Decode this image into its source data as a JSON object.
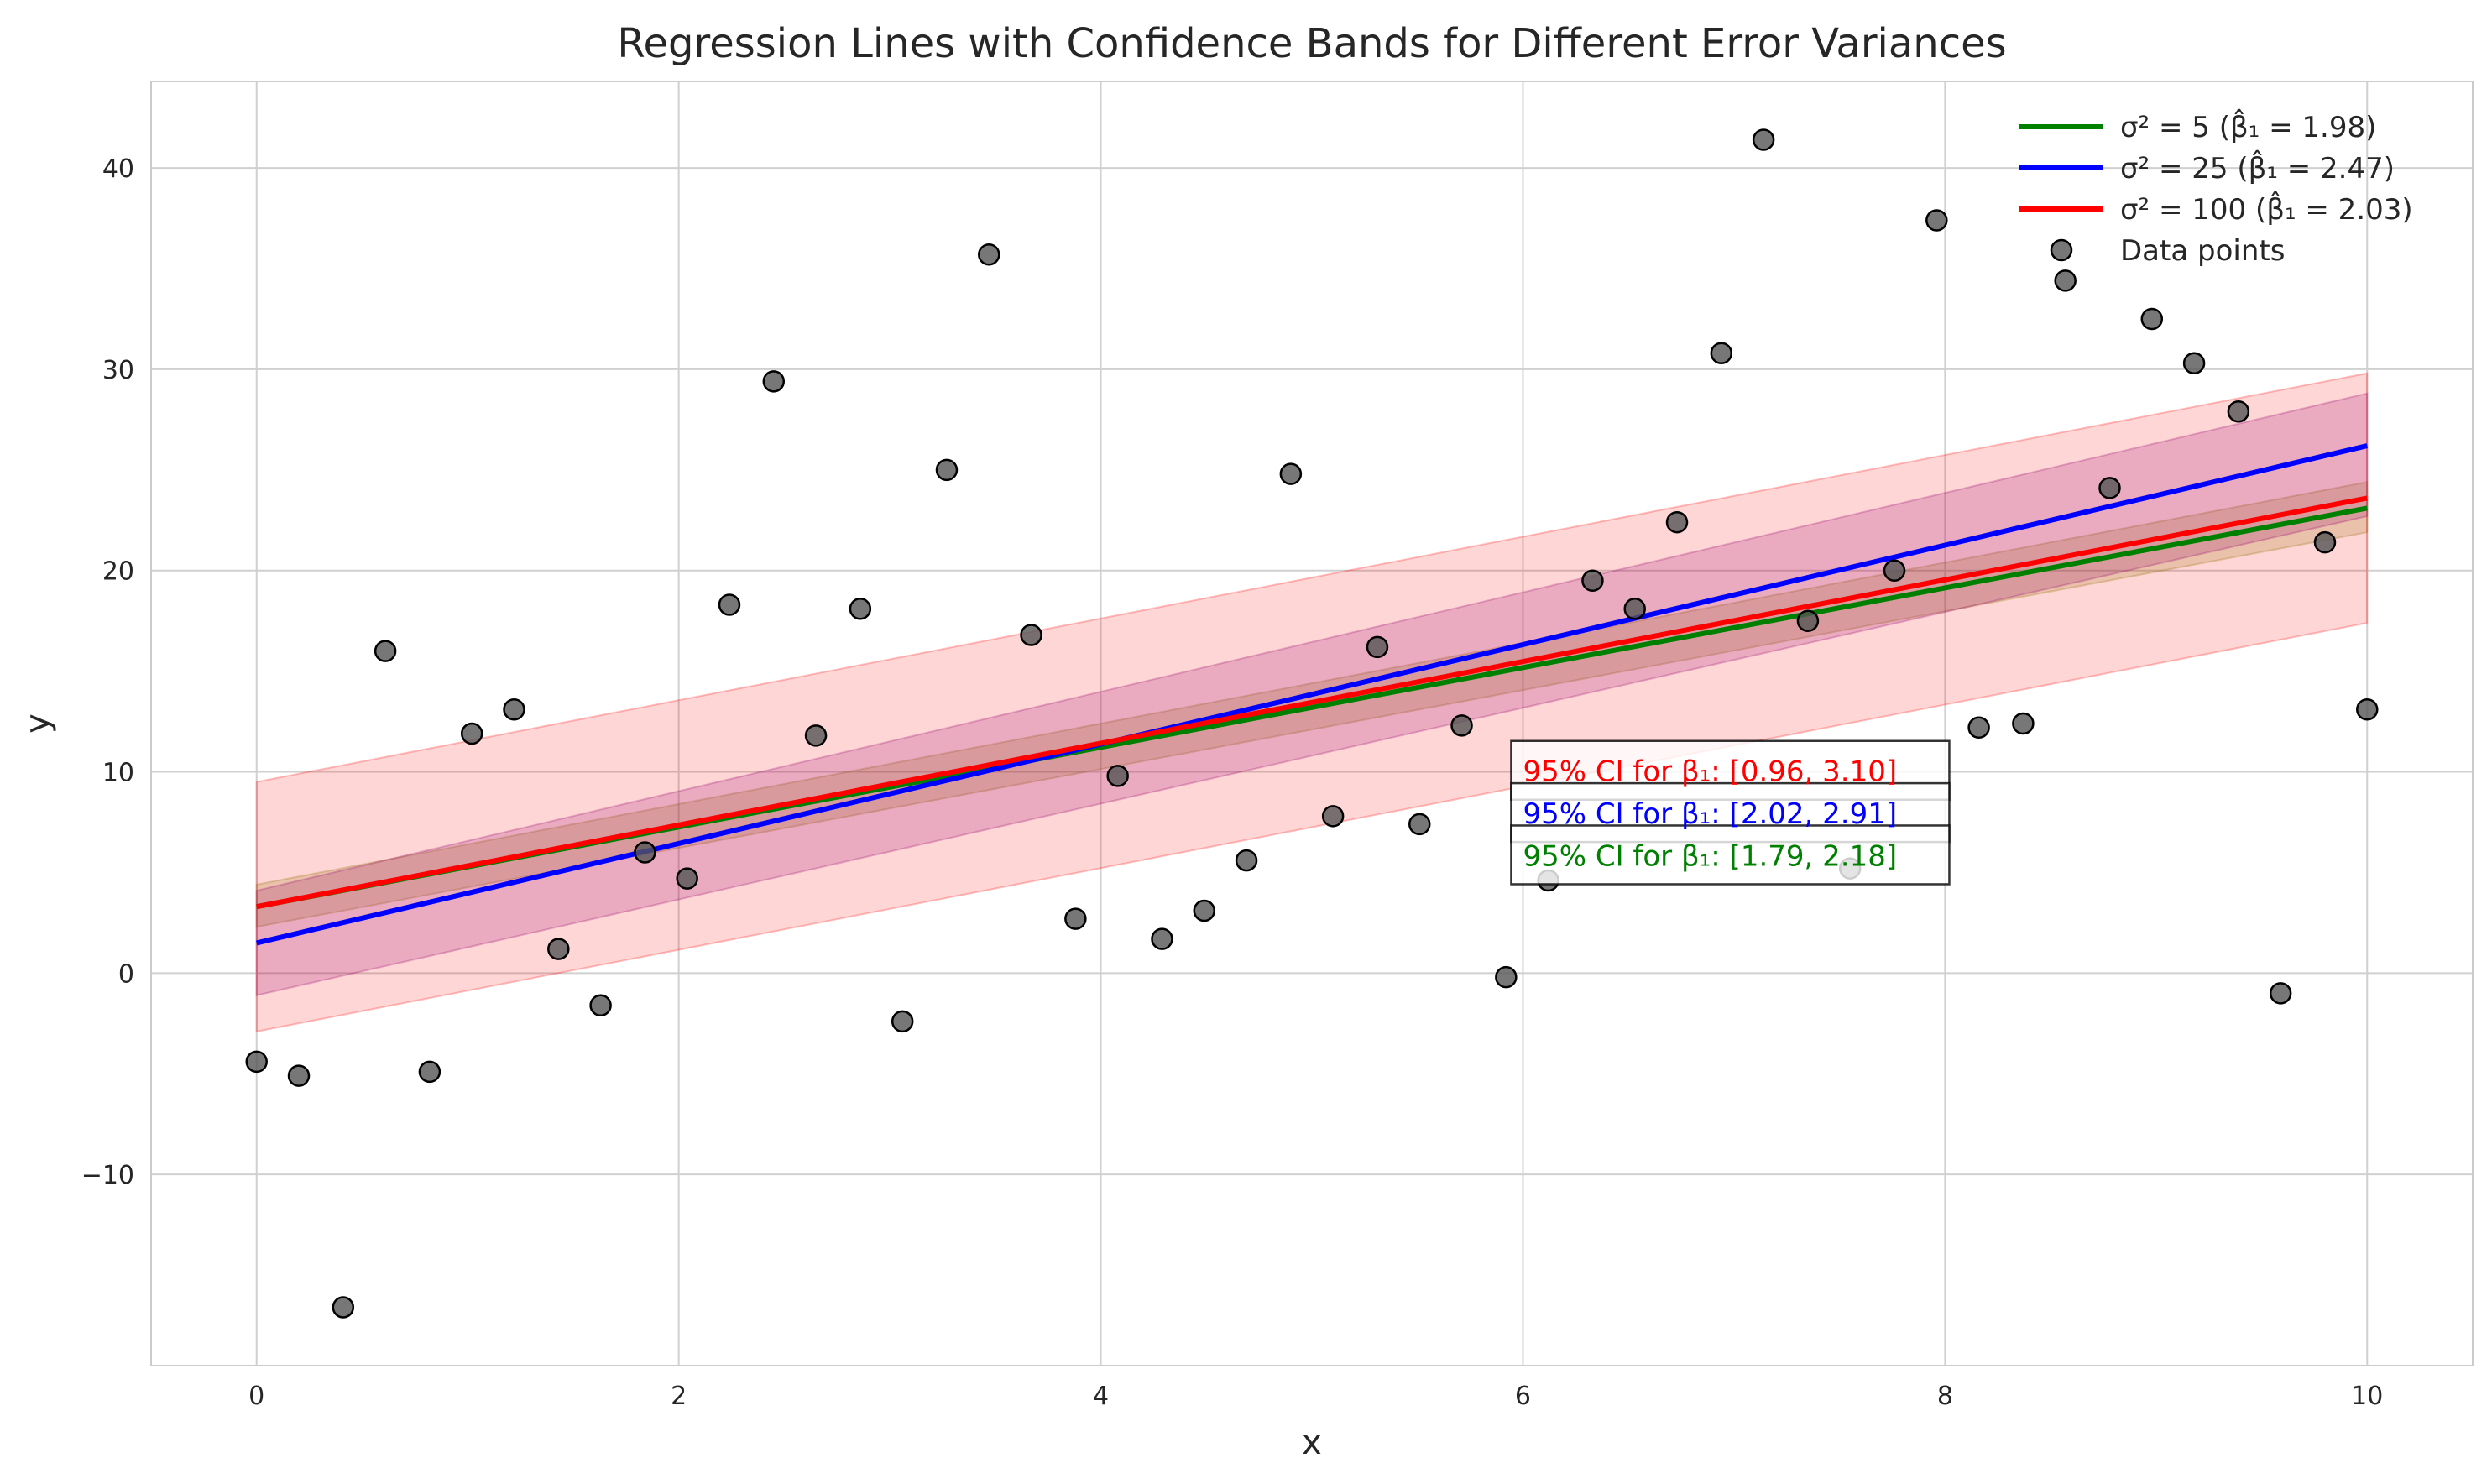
{
  "chart_data": {
    "type": "line",
    "title": "Regression Lines with Confidence Bands for Different Error Variances",
    "xlabel": "x",
    "ylabel": "y",
    "xlim": [
      -0.5,
      10.5
    ],
    "ylim": [
      -19.5,
      44.3
    ],
    "xticks": [
      0,
      2,
      4,
      6,
      8,
      10
    ],
    "xtick_labels": [
      "0",
      "2",
      "4",
      "6",
      "8",
      "10"
    ],
    "yticks": [
      -10,
      0,
      10,
      20,
      30,
      40
    ],
    "ytick_labels": [
      "−10",
      "0",
      "10",
      "20",
      "30",
      "40"
    ],
    "grid": true,
    "legend_position": "top-right",
    "series": [
      {
        "name": "σ² = 5 (β̂₁ = 1.98)",
        "color": "#008000",
        "x": [
          0,
          10
        ],
        "y": [
          3.3,
          23.1
        ],
        "band_lower": [
          2.3,
          21.9
        ],
        "band_upper": [
          4.4,
          24.4
        ],
        "band_color": "#808000"
      },
      {
        "name": "σ² = 25 (β̂₁ = 2.47)",
        "color": "#0000ff",
        "x": [
          0,
          10
        ],
        "y": [
          1.5,
          26.2
        ],
        "band_lower": [
          -1.1,
          22.7
        ],
        "band_upper": [
          4.1,
          28.8
        ],
        "band_color": "#800080"
      },
      {
        "name": "σ² = 100 (β̂₁ = 2.03)",
        "color": "#ff0000",
        "x": [
          0,
          10
        ],
        "y": [
          3.3,
          23.6
        ],
        "band_lower": [
          -2.9,
          17.4
        ],
        "band_upper": [
          9.5,
          29.8
        ],
        "band_color": "#ff0000"
      }
    ],
    "scatter": {
      "name": "Data points",
      "color": "#555555",
      "points": [
        [
          0.0,
          -4.4
        ],
        [
          0.2,
          -5.1
        ],
        [
          0.41,
          -16.6
        ],
        [
          0.61,
          16.0
        ],
        [
          0.82,
          -4.9
        ],
        [
          1.02,
          11.9
        ],
        [
          1.22,
          13.1
        ],
        [
          1.43,
          1.2
        ],
        [
          1.63,
          -1.6
        ],
        [
          1.84,
          6.0
        ],
        [
          2.04,
          4.7
        ],
        [
          2.24,
          18.3
        ],
        [
          2.45,
          29.4
        ],
        [
          2.65,
          11.8
        ],
        [
          2.86,
          18.1
        ],
        [
          3.06,
          -2.4
        ],
        [
          3.27,
          25.0
        ],
        [
          3.47,
          35.7
        ],
        [
          3.67,
          16.8
        ],
        [
          3.88,
          2.7
        ],
        [
          4.08,
          9.8
        ],
        [
          4.29,
          1.7
        ],
        [
          4.49,
          3.1
        ],
        [
          4.69,
          5.6
        ],
        [
          4.9,
          24.8
        ],
        [
          5.1,
          7.8
        ],
        [
          5.31,
          16.2
        ],
        [
          5.51,
          7.4
        ],
        [
          5.71,
          12.3
        ],
        [
          5.92,
          -0.2
        ],
        [
          6.12,
          4.6
        ],
        [
          6.33,
          19.5
        ],
        [
          6.53,
          18.1
        ],
        [
          6.73,
          22.4
        ],
        [
          6.94,
          30.8
        ],
        [
          7.14,
          41.4
        ],
        [
          7.35,
          17.5
        ],
        [
          7.55,
          5.2
        ],
        [
          7.76,
          20.0
        ],
        [
          7.96,
          37.4
        ],
        [
          8.16,
          12.2
        ],
        [
          8.37,
          12.4
        ],
        [
          8.57,
          34.4
        ],
        [
          8.78,
          24.1
        ],
        [
          8.98,
          32.5
        ],
        [
          9.18,
          30.3
        ],
        [
          9.39,
          27.9
        ],
        [
          9.59,
          -1.0
        ],
        [
          9.8,
          21.4
        ],
        [
          10.0,
          13.1
        ]
      ]
    },
    "annotations": [
      {
        "text": "95% CI for β₁: [0.96, 3.10]",
        "color": "#ff0000",
        "x": 6.0,
        "y": 9.7
      },
      {
        "text": "95% CI for β₁: [2.02, 2.91]",
        "color": "#0000ff",
        "x": 6.0,
        "y": 7.6
      },
      {
        "text": "95% CI for β₁: [1.79, 2.18]",
        "color": "#008000",
        "x": 6.0,
        "y": 5.5
      }
    ]
  }
}
